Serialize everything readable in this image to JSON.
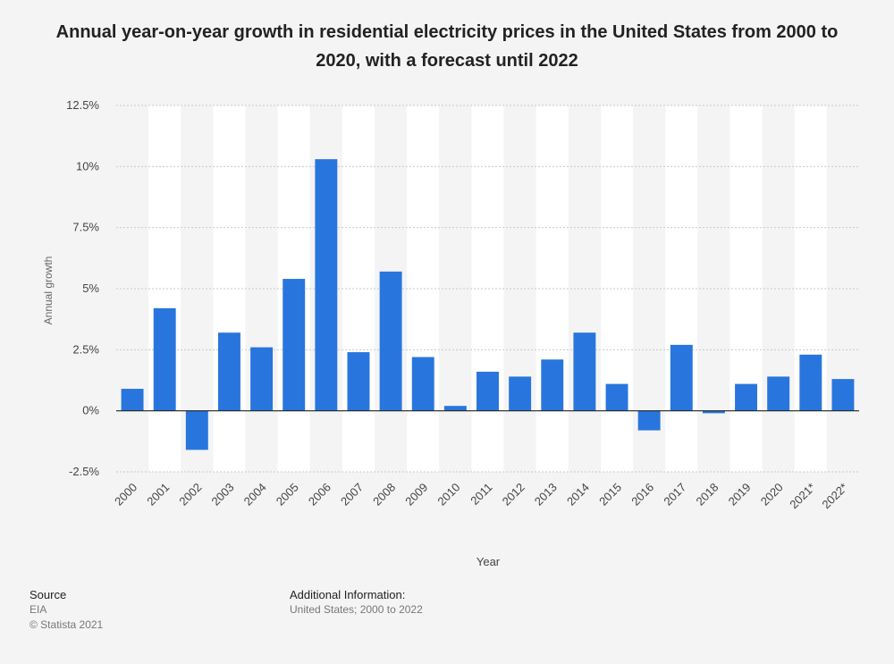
{
  "chart_data": {
    "type": "bar",
    "title": "Annual year-on-year growth in residential electricity prices in the United States from 2000 to 2020, with a forecast until 2022",
    "xlabel": "Year",
    "ylabel": "Annual growth",
    "categories": [
      "2000",
      "2001",
      "2002",
      "2003",
      "2004",
      "2005",
      "2006",
      "2007",
      "2008",
      "2009",
      "2010",
      "2011",
      "2012",
      "2013",
      "2014",
      "2015",
      "2016",
      "2017",
      "2018",
      "2019",
      "2020",
      "2021*",
      "2022*"
    ],
    "values": [
      0.9,
      4.2,
      -1.6,
      3.2,
      2.6,
      5.4,
      10.3,
      2.4,
      5.7,
      2.2,
      0.2,
      1.6,
      1.4,
      2.1,
      3.2,
      1.1,
      -0.8,
      2.7,
      -0.1,
      1.1,
      1.4,
      2.3,
      1.3
    ],
    "ylim": [
      -2.5,
      12.5
    ],
    "yticks": [
      -2.5,
      0,
      2.5,
      5,
      7.5,
      10,
      12.5
    ],
    "ytick_labels": [
      "-2.5%",
      "0%",
      "2.5%",
      "5%",
      "7.5%",
      "10%",
      "12.5%"
    ],
    "grid": true,
    "bar_color": "#2876dd"
  },
  "footer": {
    "source_heading": "Source",
    "source_name": "EIA",
    "copyright": "© Statista 2021",
    "additional_heading": "Additional Information:",
    "additional_text": "United States; 2000 to 2022"
  }
}
